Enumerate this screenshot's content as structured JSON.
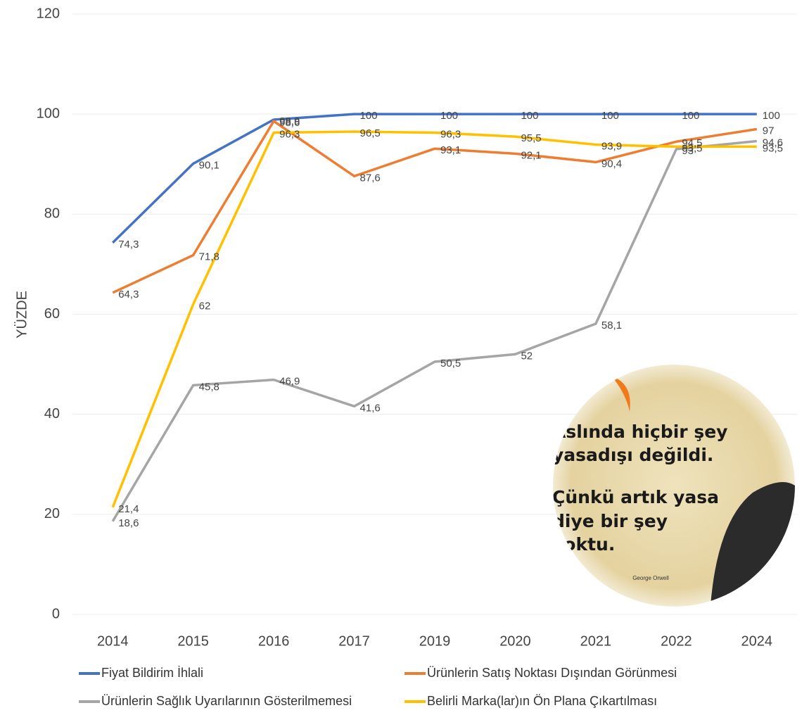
{
  "chart_data": {
    "type": "line",
    "y_label": "YÜZDE",
    "categories": [
      "2014",
      "2015",
      "2016",
      "2017",
      "2019",
      "2020",
      "2021",
      "2022",
      "2024"
    ],
    "ylim": [
      0,
      120
    ],
    "yticks": [
      0,
      20,
      40,
      60,
      80,
      100,
      120
    ],
    "grid": true,
    "legend": "bottom",
    "series": [
      {
        "name": "Fiyat Bildirim İhlali",
        "color": "#4472c4",
        "values": [
          74.3,
          90.1,
          98.9,
          100,
          100,
          100,
          100,
          100,
          100
        ],
        "value_labels": [
          "74,3",
          "90,1",
          "98,9",
          "100",
          "100",
          "100",
          "100",
          "100",
          "100"
        ]
      },
      {
        "name": "Ürünlerin Satış Noktası Dışından Görünmesi",
        "color": "#ed7d31",
        "values": [
          64.3,
          71.8,
          98.6,
          87.6,
          93.1,
          92.1,
          90.4,
          94.5,
          97
        ],
        "value_labels": [
          "64,3",
          "71,8",
          "98,6",
          "87,6",
          "93,1",
          "92,1",
          "90,4",
          "94,5",
          "97"
        ]
      },
      {
        "name": "Ürünlerin Sağlık Uyarılarının Gösterilmemesi",
        "color": "#a5a5a5",
        "values": [
          18.6,
          45.8,
          46.9,
          41.6,
          50.5,
          52,
          58.1,
          93,
          94.6
        ],
        "value_labels": [
          "18,6",
          "45,8",
          "46,9",
          "41,6",
          "50,5",
          "52",
          "58,1",
          "93",
          "94,6"
        ]
      },
      {
        "name": "Belirli Marka(lar)ın Ön Plana Çıkartılması",
        "color": "#ffc000",
        "values": [
          21.4,
          62,
          96.3,
          96.5,
          96.3,
          95.5,
          93.9,
          93.5,
          93.5
        ],
        "value_labels": [
          "21,4",
          "62",
          "96,3",
          "96,5",
          "96,3",
          "95,5",
          "93,9",
          "93,5",
          "93,5"
        ]
      }
    ]
  },
  "overlay": {
    "lines": [
      "Aslında hiçbir şey",
      "yasadışı değildi.",
      "Çünkü artık yasa",
      "diye bir şey",
      "yoktu."
    ],
    "author": "George Orwell"
  }
}
